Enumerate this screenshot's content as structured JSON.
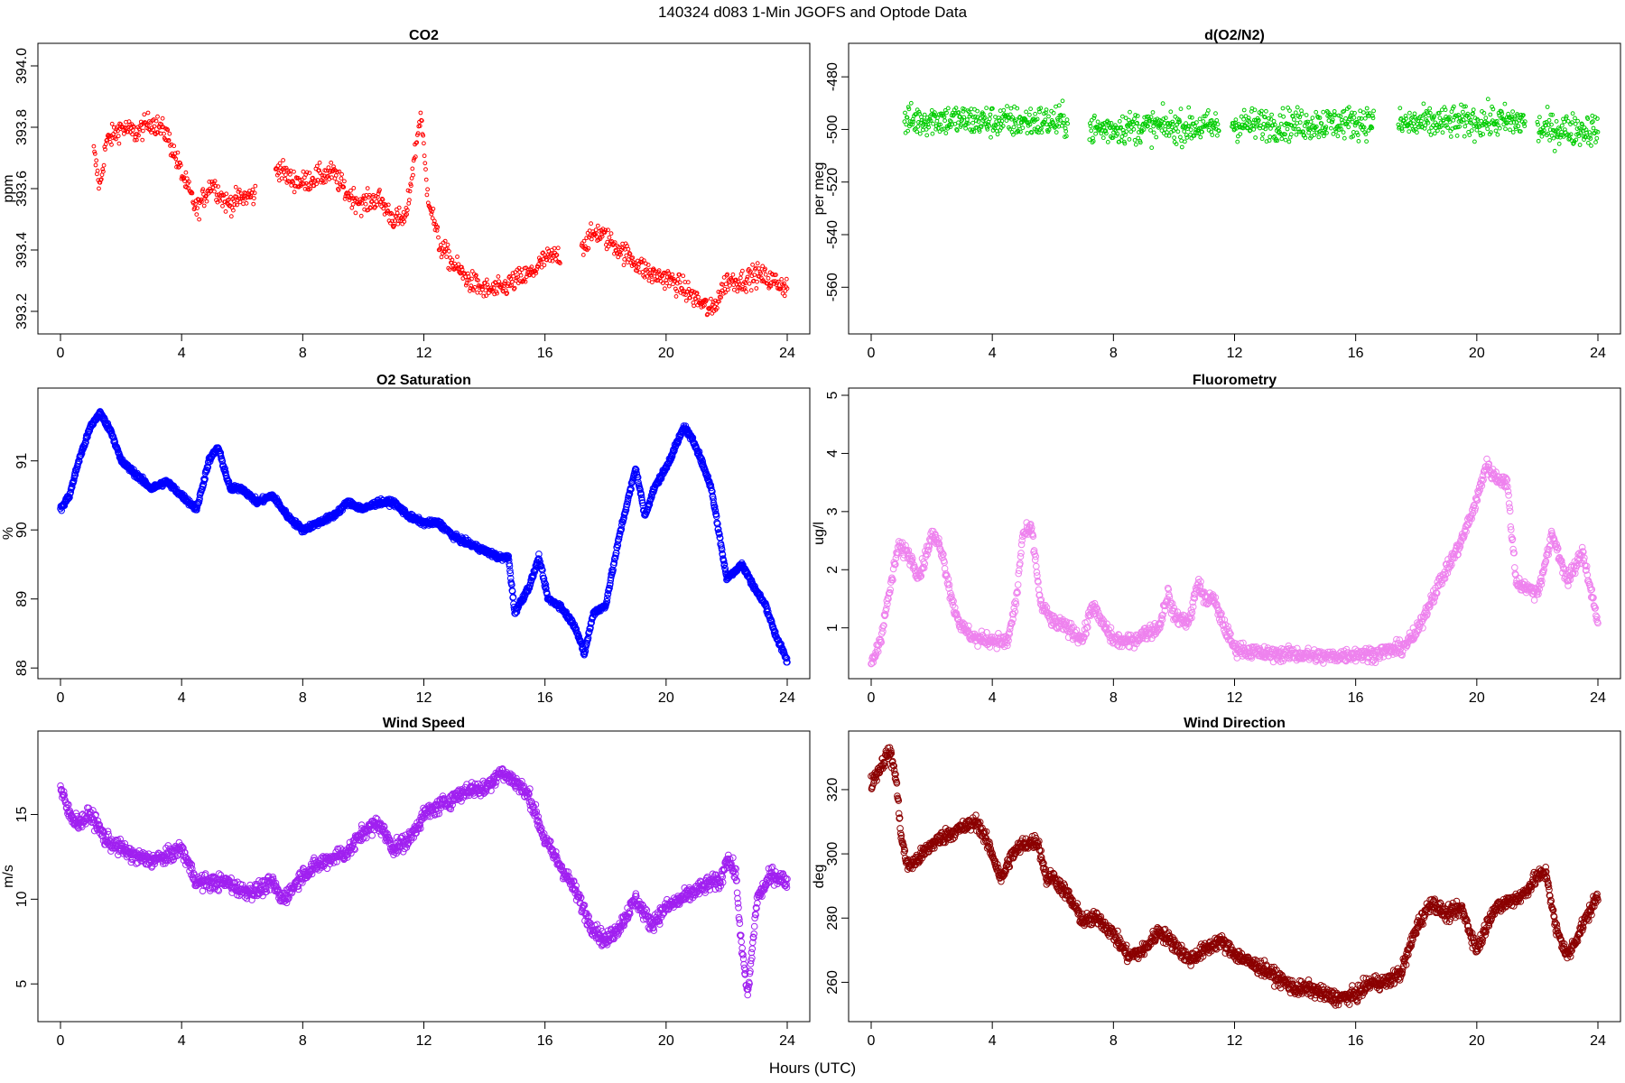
{
  "figure": {
    "title": "140324   d083   1-Min  JGOFS and Optode Data",
    "xlabel": "Hours (UTC)"
  },
  "chart_data": [
    {
      "id": "co2",
      "type": "scatter",
      "title": "CO2",
      "ylabel": "ppm",
      "color": "#ff0000",
      "marker_size": "small",
      "xlim": [
        0,
        24
      ],
      "ylim": [
        393.15,
        394.05
      ],
      "xticks": [
        0,
        4,
        8,
        12,
        16,
        20,
        24
      ],
      "yticks": [
        393.2,
        393.4,
        393.6,
        393.8,
        394.0
      ],
      "ytick_labels": [
        "393.2",
        "393.4",
        "393.6",
        "393.8",
        "394.0"
      ],
      "gaps": [
        [
          0,
          1.05
        ],
        [
          6.45,
          7.1
        ],
        [
          16.5,
          17.2
        ]
      ],
      "x": [
        1.1,
        1.3,
        1.5,
        2.0,
        2.5,
        3.0,
        3.5,
        4.0,
        4.5,
        5.0,
        5.5,
        6.0,
        6.4,
        7.2,
        7.6,
        8.0,
        8.5,
        9.0,
        9.5,
        10.0,
        10.5,
        11.0,
        11.4,
        11.9,
        12.1,
        12.5,
        13.0,
        13.5,
        14.0,
        14.5,
        15.0,
        15.5,
        16.0,
        16.4,
        17.3,
        17.7,
        18.0,
        18.5,
        19.0,
        19.5,
        20.0,
        20.5,
        21.0,
        21.5,
        22.0,
        22.5,
        23.0,
        23.5,
        24.0
      ],
      "y": [
        393.72,
        393.6,
        393.75,
        393.8,
        393.78,
        393.82,
        393.78,
        393.65,
        393.53,
        393.62,
        393.55,
        393.57,
        393.58,
        393.67,
        393.63,
        393.62,
        393.64,
        393.65,
        393.58,
        393.55,
        393.57,
        393.5,
        393.5,
        393.85,
        393.6,
        393.42,
        393.35,
        393.3,
        393.27,
        393.27,
        393.3,
        393.32,
        393.37,
        393.38,
        393.42,
        393.46,
        393.44,
        393.4,
        393.36,
        393.32,
        393.31,
        393.28,
        393.24,
        393.2,
        393.3,
        393.3,
        393.32,
        393.3,
        393.28
      ],
      "noise": 0.035,
      "density": 8
    },
    {
      "id": "o2n2",
      "type": "scatter",
      "title": "d(O2/N2)",
      "ylabel": "per meg",
      "color": "#00cc00",
      "marker_size": "small",
      "xlim": [
        0,
        24
      ],
      "ylim": [
        -575,
        -470
      ],
      "xticks": [
        0,
        4,
        8,
        12,
        16,
        20,
        24
      ],
      "yticks": [
        -560,
        -540,
        -520,
        -500,
        -480
      ],
      "ytick_labels": [
        "-560",
        "-540",
        "-520",
        "-500",
        "-480"
      ],
      "gaps": [
        [
          0,
          1.05
        ],
        [
          6.5,
          7.2
        ],
        [
          11.5,
          11.9
        ],
        [
          16.6,
          17.4
        ],
        [
          21.6,
          22.0
        ]
      ],
      "x": [
        1.1,
        2.0,
        4.0,
        6.5,
        7.2,
        9.0,
        11.5,
        12.0,
        14.0,
        16.6,
        17.4,
        20.0,
        21.6,
        22.0,
        24.0
      ],
      "y": [
        -497,
        -496,
        -497,
        -497,
        -500,
        -499,
        -499,
        -498,
        -498,
        -497,
        -498,
        -497,
        -497,
        -500,
        -500
      ],
      "noise": 6,
      "density": 9
    },
    {
      "id": "o2sat",
      "type": "scatter",
      "title": "O2 Saturation",
      "ylabel": "%",
      "color": "#0000ff",
      "marker_size": "medium",
      "xlim": [
        0,
        24
      ],
      "ylim": [
        87.95,
        91.95
      ],
      "xticks": [
        0,
        4,
        8,
        12,
        16,
        20,
        24
      ],
      "yticks": [
        88,
        89,
        90,
        91
      ],
      "ytick_labels": [
        "88",
        "89",
        "90",
        "91"
      ],
      "gaps": [],
      "x": [
        0,
        0.3,
        0.6,
        1.0,
        1.3,
        1.7,
        2.0,
        2.5,
        3.0,
        3.5,
        4.0,
        4.5,
        4.9,
        5.2,
        5.6,
        6.0,
        6.5,
        7.0,
        7.5,
        8.0,
        8.5,
        9.0,
        9.5,
        10.0,
        10.5,
        11.0,
        11.5,
        12.0,
        12.5,
        13.0,
        13.5,
        14.0,
        14.5,
        14.8,
        15.0,
        15.5,
        15.8,
        16.1,
        16.5,
        17.0,
        17.3,
        17.6,
        18.0,
        18.5,
        19.0,
        19.3,
        19.6,
        20.0,
        20.6,
        21.0,
        21.5,
        22.0,
        22.5,
        23.0,
        23.3,
        23.6,
        24.0
      ],
      "y": [
        90.3,
        90.5,
        91.0,
        91.5,
        91.7,
        91.4,
        91.0,
        90.8,
        90.6,
        90.7,
        90.5,
        90.3,
        91.0,
        91.2,
        90.6,
        90.6,
        90.4,
        90.5,
        90.2,
        90.0,
        90.1,
        90.2,
        90.4,
        90.3,
        90.4,
        90.4,
        90.2,
        90.1,
        90.1,
        89.9,
        89.8,
        89.7,
        89.6,
        89.6,
        88.8,
        89.2,
        89.6,
        89.0,
        88.9,
        88.6,
        88.2,
        88.8,
        88.9,
        90.0,
        90.9,
        90.2,
        90.6,
        90.9,
        91.5,
        91.2,
        90.6,
        89.3,
        89.5,
        89.1,
        88.9,
        88.5,
        88.1
      ],
      "noise": 0.04,
      "density": 14
    },
    {
      "id": "fluor",
      "type": "scatter",
      "title": "Fluorometry",
      "ylabel": "ug/l",
      "color": "#ee82ee",
      "marker_size": "medium",
      "xlim": [
        0,
        24
      ],
      "ylim": [
        0.25,
        5.0
      ],
      "xticks": [
        0,
        4,
        8,
        12,
        16,
        20,
        24
      ],
      "yticks": [
        1,
        2,
        3,
        4,
        5
      ],
      "ytick_labels": [
        "1",
        "2",
        "3",
        "4",
        "5"
      ],
      "gaps": [],
      "x": [
        0,
        0.3,
        0.6,
        0.9,
        1.2,
        1.6,
        2.0,
        2.3,
        2.7,
        3.0,
        3.5,
        4.0,
        4.5,
        4.8,
        5.0,
        5.3,
        5.6,
        6.0,
        6.5,
        7.0,
        7.3,
        7.6,
        8.0,
        8.5,
        9.0,
        9.5,
        9.8,
        10.0,
        10.5,
        10.8,
        11.0,
        11.3,
        11.6,
        12.0,
        12.5,
        13.0,
        14.0,
        15.0,
        16.0,
        16.5,
        17.0,
        17.5,
        18.0,
        18.5,
        19.0,
        19.5,
        20.0,
        20.3,
        20.6,
        21.0,
        21.3,
        21.6,
        22.0,
        22.5,
        23.0,
        23.5,
        24.0
      ],
      "y": [
        0.35,
        0.8,
        1.6,
        2.4,
        2.3,
        1.9,
        2.6,
        2.4,
        1.4,
        1.0,
        0.8,
        0.8,
        0.75,
        1.5,
        2.6,
        2.7,
        1.4,
        1.1,
        1.0,
        0.8,
        1.4,
        1.1,
        0.8,
        0.75,
        0.9,
        1.0,
        1.6,
        1.2,
        1.1,
        1.8,
        1.5,
        1.5,
        1.1,
        0.65,
        0.6,
        0.55,
        0.55,
        0.5,
        0.55,
        0.55,
        0.6,
        0.65,
        0.9,
        1.5,
        2.0,
        2.5,
        3.2,
        3.8,
        3.6,
        3.5,
        1.8,
        1.7,
        1.6,
        2.6,
        1.8,
        2.3,
        1.1
      ],
      "noise": 0.12,
      "density": 10
    },
    {
      "id": "wspd",
      "type": "scatter",
      "title": "Wind Speed",
      "ylabel": "m/s",
      "color": "#a020f0",
      "marker_size": "medium",
      "xlim": [
        0,
        24
      ],
      "ylim": [
        3.2,
        19.5
      ],
      "xticks": [
        0,
        4,
        8,
        12,
        16,
        20,
        24
      ],
      "yticks": [
        5,
        10,
        15
      ],
      "ytick_labels": [
        "5",
        "10",
        "15"
      ],
      "gaps": [],
      "x": [
        0,
        0.3,
        0.6,
        1.0,
        1.5,
        2.0,
        2.5,
        3.0,
        3.5,
        4.0,
        4.5,
        5.0,
        5.5,
        6.0,
        6.5,
        7.0,
        7.3,
        7.6,
        8.0,
        8.5,
        9.0,
        9.5,
        10.0,
        10.5,
        11.0,
        11.5,
        12.0,
        12.5,
        13.0,
        13.5,
        14.0,
        14.5,
        15.0,
        15.5,
        16.0,
        16.5,
        17.0,
        17.5,
        18.0,
        18.5,
        19.0,
        19.5,
        20.0,
        20.5,
        21.0,
        21.5,
        21.8,
        22.0,
        22.3,
        22.5,
        22.7,
        23.0,
        23.5,
        24.0
      ],
      "y": [
        16.5,
        15.0,
        14.5,
        15.0,
        13.5,
        13.0,
        12.5,
        12.3,
        12.5,
        13.0,
        11.0,
        11.0,
        11.0,
        10.5,
        10.5,
        11.0,
        10.0,
        10.5,
        11.5,
        12.0,
        12.5,
        12.8,
        14.0,
        14.5,
        13.0,
        13.5,
        15.0,
        15.5,
        16.0,
        16.5,
        16.5,
        17.5,
        17.0,
        16.0,
        13.5,
        12.0,
        10.5,
        8.5,
        7.5,
        8.5,
        10.0,
        8.5,
        9.5,
        10.0,
        10.5,
        11.0,
        11.0,
        12.5,
        11.5,
        7.0,
        4.3,
        10.0,
        11.5,
        11.0
      ],
      "noise": 0.45,
      "density": 12
    },
    {
      "id": "wdir",
      "type": "scatter",
      "title": "Wind Direction",
      "ylabel": "deg",
      "color": "#8b0000",
      "marker_size": "medium",
      "xlim": [
        0,
        24
      ],
      "ylim": [
        250,
        336
      ],
      "xticks": [
        0,
        4,
        8,
        12,
        16,
        20,
        24
      ],
      "yticks": [
        260,
        280,
        300,
        320
      ],
      "ytick_labels": [
        "260",
        "280",
        "300",
        "320"
      ],
      "gaps": [],
      "x": [
        0,
        0.3,
        0.6,
        0.8,
        1.0,
        1.2,
        1.5,
        2.0,
        2.5,
        3.0,
        3.5,
        4.0,
        4.3,
        4.6,
        5.0,
        5.5,
        5.8,
        6.0,
        6.5,
        7.0,
        7.5,
        8.0,
        8.5,
        9.0,
        9.5,
        10.0,
        10.5,
        11.0,
        11.5,
        12.0,
        12.5,
        13.0,
        13.5,
        14.0,
        14.5,
        15.0,
        15.5,
        16.0,
        16.5,
        17.0,
        17.5,
        18.0,
        18.5,
        19.0,
        19.5,
        20.0,
        20.5,
        21.0,
        21.5,
        22.0,
        22.3,
        22.6,
        23.0,
        23.5,
        24.0
      ],
      "y": [
        322,
        327,
        332,
        325,
        305,
        296,
        298,
        303,
        306,
        308,
        310,
        300,
        292,
        299,
        303,
        304,
        292,
        293,
        287,
        279,
        280,
        275,
        268,
        270,
        276,
        272,
        267,
        270,
        273,
        269,
        266,
        264,
        261,
        258,
        258,
        256,
        255,
        256,
        260,
        260,
        263,
        277,
        285,
        281,
        283,
        270,
        282,
        285,
        287,
        293,
        294,
        277,
        268,
        278,
        287
      ],
      "noise": 2.2,
      "density": 12
    }
  ]
}
